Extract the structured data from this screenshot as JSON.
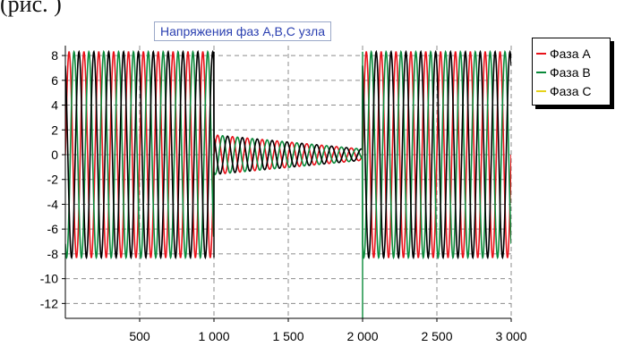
{
  "caption_fragment": "(рис. )",
  "chart_data": {
    "type": "line",
    "title": "Напряжения фаз А,В,С узла",
    "xlabel": "",
    "ylabel": "",
    "xlim": [
      0,
      3000
    ],
    "ylim": [
      -13.2,
      8.8
    ],
    "x_ticks": [
      {
        "value": 500,
        "label": "500"
      },
      {
        "value": 1000,
        "label": "1 000"
      },
      {
        "value": 1500,
        "label": "1 500"
      },
      {
        "value": 2000,
        "label": "2 000"
      },
      {
        "value": 2500,
        "label": "2 500"
      },
      {
        "value": 3000,
        "label": "3 000"
      }
    ],
    "y_ticks": [
      {
        "value": 8,
        "label": "8"
      },
      {
        "value": 6,
        "label": "6"
      },
      {
        "value": 4,
        "label": "4"
      },
      {
        "value": 2,
        "label": "2"
      },
      {
        "value": 0,
        "label": "0"
      },
      {
        "value": -2,
        "label": "-2"
      },
      {
        "value": -4,
        "label": "-4"
      },
      {
        "value": -6,
        "label": "-6"
      },
      {
        "value": -8,
        "label": "-8"
      },
      {
        "value": -10,
        "label": "-10"
      },
      {
        "value": -12,
        "label": "-12"
      }
    ],
    "grid": true,
    "legend_position": "right",
    "series": [
      {
        "name": "Фаза A",
        "color": "#e8121a",
        "amplitude": 8.3,
        "phase_deg": 0,
        "fault_amplitude_start": 1.6,
        "fault_amplitude_end": 0.45,
        "period": 100
      },
      {
        "name": "Фаза B",
        "color": "#0a8a3a",
        "amplitude": 8.3,
        "phase_deg": -120,
        "fault_amplitude_start": 1.6,
        "fault_amplitude_end": 0.45,
        "period": 100
      },
      {
        "name": "Фаза C",
        "color": "#e6d21a",
        "amplitude": 8.3,
        "phase_deg": 120,
        "fault_amplitude_start": 1.6,
        "fault_amplitude_end": 0.45,
        "period": 100
      }
    ],
    "fault_interval": [
      1000,
      2000
    ],
    "trace_colors": {
      "phase_c_visible_trace": "#000000"
    }
  }
}
